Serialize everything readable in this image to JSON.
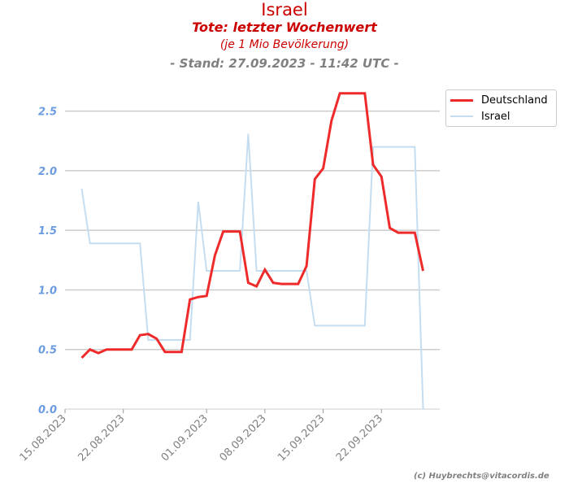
{
  "header": {
    "title": "Israel",
    "subtitle": "Tote: letzter Wochenwert",
    "note": "(je 1 Mio Bevölkerung)",
    "stand": "- Stand: 27.09.2023 - 11:42 UTC -"
  },
  "credit": "(c) Huybrechts@vitacordis.de",
  "chart_data": {
    "type": "line",
    "title": "Tote: letzter Wochenwert",
    "xlabel": "",
    "ylabel": "",
    "ylim": [
      0,
      2.75
    ],
    "yticks": [
      0.0,
      0.5,
      1.0,
      1.5,
      2.0,
      2.5
    ],
    "ytick_labels": [
      "0.0",
      "0.5",
      "1.0",
      "1.5",
      "2.0",
      "2.5"
    ],
    "xticks": [
      "2023-08-15",
      "2023-08-22",
      "2023-09-01",
      "2023-09-08",
      "2023-09-15",
      "2023-09-22"
    ],
    "xtick_labels": [
      "15.08.2023",
      "22.08.2023",
      "01.09.2023",
      "08.09.2023",
      "15.09.2023",
      "22.09.2023"
    ],
    "xlim": [
      "2023-08-15",
      "2023-09-29"
    ],
    "grid": "horizontal",
    "legend": "top-right",
    "series": [
      {
        "name": "Deutschland",
        "color": "#ee2a2a",
        "x": [
          "2023-08-17",
          "2023-08-18",
          "2023-08-19",
          "2023-08-20",
          "2023-08-21",
          "2023-08-22",
          "2023-08-23",
          "2023-08-24",
          "2023-08-25",
          "2023-08-26",
          "2023-08-27",
          "2023-08-28",
          "2023-08-29",
          "2023-08-30",
          "2023-08-31",
          "2023-09-01",
          "2023-09-02",
          "2023-09-03",
          "2023-09-04",
          "2023-09-05",
          "2023-09-06",
          "2023-09-07",
          "2023-09-08",
          "2023-09-09",
          "2023-09-10",
          "2023-09-11",
          "2023-09-12",
          "2023-09-13",
          "2023-09-14",
          "2023-09-15",
          "2023-09-16",
          "2023-09-17",
          "2023-09-18",
          "2023-09-19",
          "2023-09-20",
          "2023-09-21",
          "2023-09-22",
          "2023-09-23",
          "2023-09-24",
          "2023-09-25",
          "2023-09-26",
          "2023-09-27"
        ],
        "values": [
          0.43,
          0.5,
          0.47,
          0.5,
          0.5,
          0.5,
          0.5,
          0.62,
          0.63,
          0.59,
          0.48,
          0.48,
          0.48,
          0.92,
          0.94,
          0.95,
          1.29,
          1.49,
          1.49,
          1.49,
          1.06,
          1.03,
          1.17,
          1.06,
          1.05,
          1.05,
          1.05,
          1.2,
          1.93,
          2.02,
          2.42,
          2.65,
          2.65,
          2.65,
          2.65,
          2.05,
          1.95,
          1.52,
          1.48,
          1.48,
          1.48,
          1.16
        ]
      },
      {
        "name": "Israel",
        "color": "#c5ddf0",
        "x": [
          "2023-08-17",
          "2023-08-18",
          "2023-08-19",
          "2023-08-20",
          "2023-08-21",
          "2023-08-22",
          "2023-08-23",
          "2023-08-24",
          "2023-08-25",
          "2023-08-26",
          "2023-08-27",
          "2023-08-28",
          "2023-08-29",
          "2023-08-30",
          "2023-08-31",
          "2023-09-01",
          "2023-09-02",
          "2023-09-03",
          "2023-09-04",
          "2023-09-05",
          "2023-09-06",
          "2023-09-07",
          "2023-09-08",
          "2023-09-09",
          "2023-09-10",
          "2023-09-11",
          "2023-09-12",
          "2023-09-13",
          "2023-09-14",
          "2023-09-15",
          "2023-09-16",
          "2023-09-17",
          "2023-09-18",
          "2023-09-19",
          "2023-09-20",
          "2023-09-21",
          "2023-09-22",
          "2023-09-23",
          "2023-09-24",
          "2023-09-25",
          "2023-09-26",
          "2023-09-27"
        ],
        "values": [
          1.85,
          1.39,
          1.39,
          1.39,
          1.39,
          1.39,
          1.39,
          1.39,
          0.58,
          0.58,
          0.58,
          0.58,
          0.58,
          0.58,
          1.74,
          1.16,
          1.16,
          1.16,
          1.16,
          1.16,
          2.31,
          1.16,
          1.16,
          1.16,
          1.16,
          1.16,
          1.16,
          1.16,
          0.7,
          0.7,
          0.7,
          0.7,
          0.7,
          0.7,
          0.7,
          2.2,
          2.2,
          2.2,
          2.2,
          2.2,
          2.2,
          0.0
        ]
      }
    ]
  }
}
